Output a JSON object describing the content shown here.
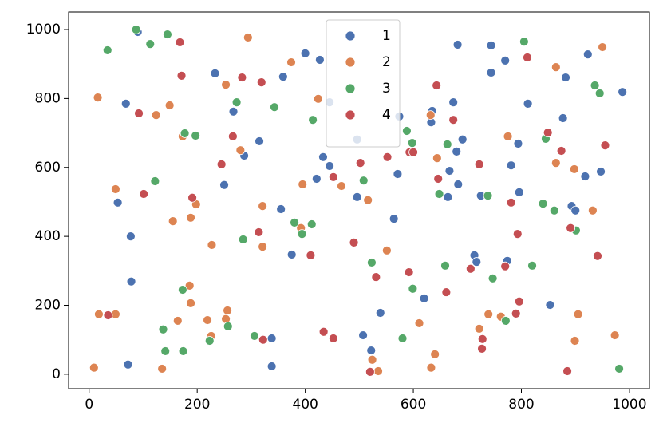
{
  "chart_data": {
    "type": "scatter",
    "xlim": [
      -38,
      1037
    ],
    "ylim": [
      -42,
      1051
    ],
    "xticks": [
      0,
      200,
      400,
      600,
      800,
      1000
    ],
    "yticks": [
      0,
      200,
      400,
      600,
      800,
      1000
    ],
    "legend": "upper center",
    "series": [
      {
        "name": "1",
        "color": "#4c72b0",
        "x": [
          90,
          68,
          233,
          267,
          315,
          287,
          359,
          400,
          427,
          445,
          496,
          433,
          445,
          421,
          250,
          53,
          77,
          78,
          72,
          338,
          338,
          355,
          375,
          496,
          564,
          571,
          574,
          633,
          635,
          674,
          682,
          744,
          744,
          770,
          691,
          680,
          667,
          683,
          664,
          725,
          794,
          781,
          796,
          812,
          877,
          882,
          923,
          987,
          947,
          918,
          893,
          900,
          853,
          713,
          717,
          774,
          620,
          539,
          507,
          522
        ],
        "values": [
          993,
          785,
          873,
          762,
          676,
          634,
          863,
          931,
          912,
          789,
          681,
          630,
          604,
          567,
          549,
          498,
          400,
          269,
          28,
          104,
          23,
          479,
          347,
          514,
          451,
          581,
          748,
          731,
          764,
          789,
          956,
          954,
          875,
          910,
          681,
          646,
          590,
          551,
          514,
          518,
          669,
          606,
          528,
          785,
          743,
          861,
          928,
          819,
          588,
          574,
          488,
          475,
          201,
          345,
          326,
          329,
          220,
          178,
          113,
          69
        ]
      },
      {
        "name": "2",
        "color": "#dd8452",
        "x": [
          16,
          9,
          18,
          49,
          49,
          124,
          149,
          173,
          198,
          155,
          188,
          186,
          188,
          164,
          135,
          219,
          226,
          227,
          253,
          256,
          253,
          280,
          294,
          321,
          321,
          374,
          395,
          392,
          424,
          467,
          516,
          551,
          524,
          535,
          632,
          644,
          611,
          633,
          640,
          722,
          739,
          762,
          775,
          864,
          864,
          898,
          932,
          950,
          905,
          899,
          973
        ],
        "values": [
          803,
          19,
          174,
          174,
          537,
          752,
          780,
          690,
          493,
          444,
          454,
          257,
          206,
          155,
          16,
          157,
          111,
          375,
          160,
          185,
          840,
          650,
          977,
          488,
          370,
          905,
          551,
          424,
          799,
          546,
          505,
          359,
          42,
          9,
          752,
          627,
          148,
          19,
          58,
          132,
          174,
          167,
          690,
          891,
          613,
          595,
          475,
          949,
          174,
          97,
          113
        ]
      },
      {
        "name": "3",
        "color": "#55a868",
        "x": [
          34,
          87,
          113,
          145,
          122,
          177,
          197,
          173,
          137,
          141,
          174,
          223,
          257,
          273,
          285,
          306,
          343,
          380,
          394,
          412,
          414,
          508,
          523,
          580,
          599,
          588,
          598,
          648,
          663,
          659,
          738,
          747,
          771,
          820,
          805,
          845,
          840,
          861,
          901,
          936,
          945,
          981
        ],
        "values": [
          940,
          1000,
          958,
          986,
          560,
          699,
          692,
          245,
          130,
          67,
          67,
          97,
          139,
          789,
          391,
          111,
          775,
          440,
          407,
          435,
          738,
          562,
          324,
          104,
          248,
          706,
          671,
          523,
          667,
          315,
          518,
          278,
          155,
          315,
          965,
          683,
          495,
          475,
          417,
          838,
          815,
          16
        ]
      },
      {
        "name": "4",
        "color": "#c44e52",
        "x": [
          35,
          92,
          101,
          168,
          171,
          191,
          245,
          266,
          283,
          319,
          314,
          322,
          410,
          434,
          452,
          452,
          490,
          502,
          531,
          520,
          552,
          592,
          593,
          600,
          643,
          646,
          661,
          674,
          706,
          722,
          728,
          727,
          770,
          781,
          790,
          796,
          793,
          811,
          849,
          874,
          885,
          891,
          941,
          955
        ],
        "values": [
          171,
          757,
          523,
          963,
          866,
          512,
          609,
          690,
          861,
          847,
          412,
          100,
          345,
          123,
          104,
          572,
          382,
          613,
          282,
          7,
          630,
          296,
          644,
          644,
          838,
          567,
          238,
          738,
          306,
          609,
          102,
          74,
          313,
          498,
          176,
          211,
          407,
          919,
          701,
          648,
          9,
          424,
          343,
          664
        ]
      }
    ]
  }
}
